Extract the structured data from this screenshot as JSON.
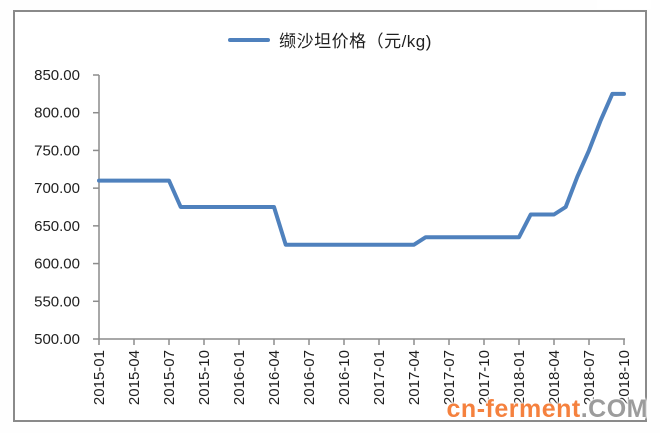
{
  "chart": {
    "legend_label": "缬沙坦价格（元/kg)",
    "y_tick_labels": [
      "850.00",
      "800.00",
      "750.00",
      "700.00",
      "650.00",
      "600.00",
      "550.00",
      "500.00"
    ],
    "x_tick_labels": [
      "2015-01",
      "2015-04",
      "2015-07",
      "2015-10",
      "2016-01",
      "2016-04",
      "2016-07",
      "2016-10",
      "2017-01",
      "2017-04",
      "2017-07",
      "2017-10",
      "2018-01",
      "2018-04",
      "2018-07",
      "2018-10"
    ]
  },
  "watermark": {
    "orange_text": "cn-ferment",
    "gray_text": ".COM"
  },
  "colors": {
    "line": "#4F81BD",
    "axis": "#8C8C8C",
    "frame_border": "#8A8A8A",
    "text": "#1F1F1F",
    "watermark_orange": "#F5813E",
    "watermark_gray": "#9C9C9C"
  },
  "chart_data": {
    "type": "line",
    "title": "",
    "xlabel": "",
    "ylabel": "",
    "legend_position": "top",
    "grid": false,
    "ylim": [
      500,
      850
    ],
    "y_tick_step": 50,
    "x_tick_every": 3,
    "x": [
      "2015-01",
      "2015-02",
      "2015-03",
      "2015-04",
      "2015-05",
      "2015-06",
      "2015-07",
      "2015-08",
      "2015-09",
      "2015-10",
      "2015-11",
      "2015-12",
      "2016-01",
      "2016-02",
      "2016-03",
      "2016-04",
      "2016-05",
      "2016-06",
      "2016-07",
      "2016-08",
      "2016-09",
      "2016-10",
      "2016-11",
      "2016-12",
      "2017-01",
      "2017-02",
      "2017-03",
      "2017-04",
      "2017-05",
      "2017-06",
      "2017-07",
      "2017-08",
      "2017-09",
      "2017-10",
      "2017-11",
      "2017-12",
      "2018-01",
      "2018-02",
      "2018-03",
      "2018-04",
      "2018-05",
      "2018-06",
      "2018-07",
      "2018-08",
      "2018-09",
      "2018-10"
    ],
    "series": [
      {
        "name": "缬沙坦价格（元/kg)",
        "values": [
          710,
          710,
          710,
          710,
          710,
          710,
          710,
          675,
          675,
          675,
          675,
          675,
          675,
          675,
          675,
          675,
          625,
          625,
          625,
          625,
          625,
          625,
          625,
          625,
          625,
          625,
          625,
          625,
          635,
          635,
          635,
          635,
          635,
          635,
          635,
          635,
          635,
          665,
          665,
          665,
          675,
          715,
          750,
          790,
          825,
          825
        ]
      }
    ]
  }
}
